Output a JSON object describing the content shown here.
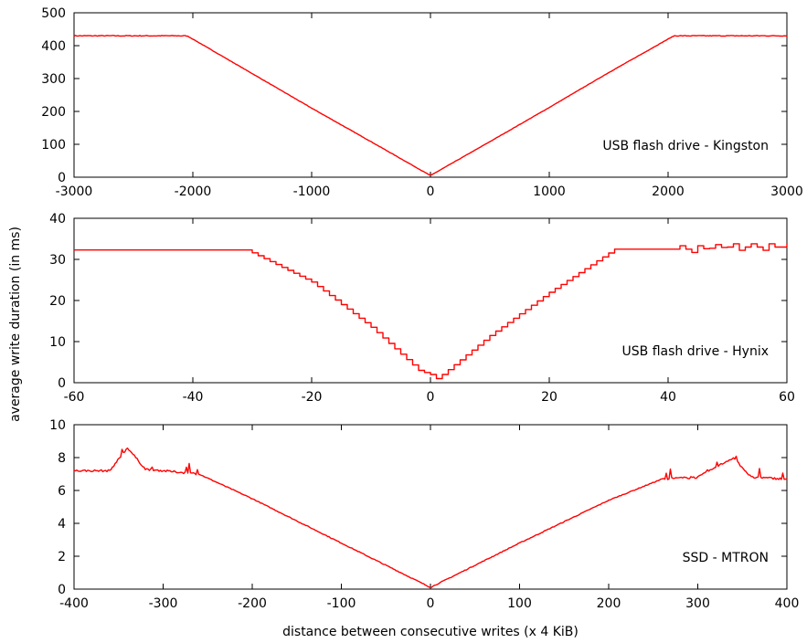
{
  "colors": {
    "series": "#ff0000",
    "axes": "#000000",
    "background": "#ffffff"
  },
  "ylabel": "average write duration (in ms)",
  "xlabel": "distance between consecutive writes (x 4 KiB)",
  "chart_data": [
    {
      "type": "line",
      "label": "USB flash drive - Kingston",
      "xlim": [
        -3000,
        3000
      ],
      "ylim": [
        0,
        500
      ],
      "xticks": [
        "-3000",
        "-2000",
        "-1000",
        "0",
        "1000",
        "2000",
        "3000"
      ],
      "yticks": [
        "0",
        "100",
        "200",
        "300",
        "400",
        "500"
      ],
      "grid": false,
      "shape": "plateau-v",
      "series": [
        {
          "x": [
            -3000,
            -2500,
            -2050,
            -2000,
            -1500,
            -1000,
            -500,
            0,
            500,
            1000,
            1500,
            2000,
            2050,
            2500,
            3000
          ],
          "y": [
            430,
            430,
            430,
            420,
            315,
            210,
            108,
            5,
            108,
            212,
            318,
            420,
            430,
            430,
            430
          ]
        }
      ]
    },
    {
      "type": "line",
      "label": "USB flash drive - Hynix",
      "xlim": [
        -60,
        60
      ],
      "ylim": [
        0,
        40
      ],
      "xticks": [
        "-60",
        "-40",
        "-20",
        "0",
        "20",
        "40",
        "60"
      ],
      "yticks": [
        "0",
        "10",
        "20",
        "30",
        "40"
      ],
      "grid": false,
      "shape": "stair",
      "series": [
        {
          "x": [
            -60,
            -40,
            -31,
            -20,
            -10,
            -2,
            0,
            1,
            2,
            10,
            20,
            31,
            40,
            45,
            50,
            55,
            60
          ],
          "y": [
            32.3,
            32.3,
            32.3,
            24.5,
            13.5,
            3,
            2,
            1,
            2,
            11.5,
            22,
            32.5,
            32.5,
            32.5,
            33,
            33,
            33
          ]
        }
      ]
    },
    {
      "type": "line",
      "label": "SSD - MTRON",
      "xlim": [
        -400,
        400
      ],
      "ylim": [
        0,
        10
      ],
      "xticks": [
        "-400",
        "-300",
        "-200",
        "-100",
        "0",
        "100",
        "200",
        "300",
        "400"
      ],
      "yticks": [
        "0",
        "2",
        "4",
        "6",
        "8",
        "10"
      ],
      "grid": false,
      "shape": "plateau-v",
      "series": [
        {
          "x": [
            -400,
            -360,
            -340,
            -320,
            -300,
            -260,
            -200,
            -100,
            0,
            100,
            200,
            260,
            300,
            340,
            360,
            400
          ],
          "y": [
            7.2,
            7.2,
            8.6,
            7.3,
            7.2,
            7.0,
            5.5,
            2.8,
            0.1,
            2.8,
            5.4,
            6.7,
            6.8,
            8.0,
            6.8,
            6.7
          ]
        }
      ]
    }
  ]
}
